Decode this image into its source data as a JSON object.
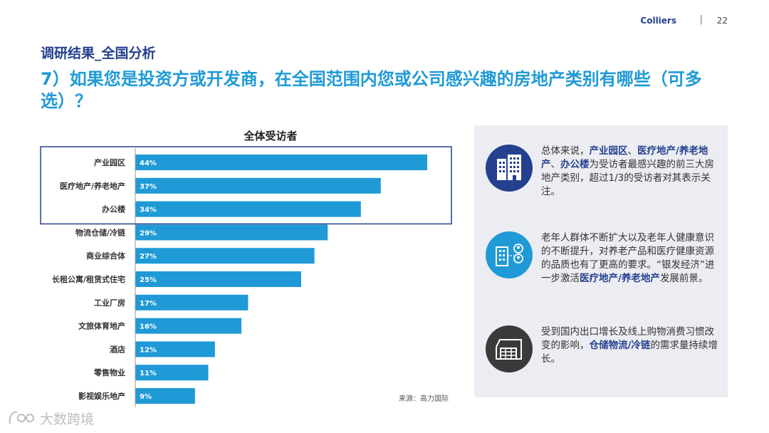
{
  "header": {
    "brand": "Colliers",
    "separator": "|",
    "page_number": "22"
  },
  "subtitle": "调研结果_全国分析",
  "title": "7）如果您是投资方或开发商，在全国范围内您或公司感兴趣的房地产类别有哪些（可多选）？",
  "chart_data": {
    "type": "bar",
    "orientation": "horizontal",
    "title": "全体受访者",
    "categories": [
      "产业园区",
      "医疗地产/养老地产",
      "办公楼",
      "物流仓储/冷链",
      "商业综合体",
      "长租公寓/租赁式住宅",
      "工业厂房",
      "文旅体育地产",
      "酒店",
      "零售物业",
      "影视娱乐地产"
    ],
    "values": [
      44,
      37,
      34,
      29,
      27,
      25,
      17,
      16,
      12,
      11,
      9
    ],
    "value_suffix": "%",
    "highlighted_top": 3,
    "xlim": [
      0,
      50
    ],
    "bar_color": "#1f9ad6",
    "highlight_box_color": "#25408f"
  },
  "source": "来源：高力国际",
  "panel": {
    "items": [
      {
        "icon": "buildings-icon",
        "segments": [
          {
            "t": "总体来说，",
            "h": false
          },
          {
            "t": "产业园区",
            "h": true
          },
          {
            "t": "、",
            "h": false
          },
          {
            "t": "医疗地产/养老地产",
            "h": true
          },
          {
            "t": "、",
            "h": false
          },
          {
            "t": "办公楼",
            "h": true
          },
          {
            "t": "为受访者最感兴趣的前三大房地产类别，超过1/3的受访者对其表示关注。",
            "h": false
          }
        ]
      },
      {
        "icon": "elderly-care-icon",
        "segments": [
          {
            "t": "老年人群体不断扩大以及老年人健康意识的不断提升，对养老产品和医疗健康资源的品质也有了更高的要求。“银发经济”进一步激活",
            "h": false
          },
          {
            "t": "医疗地产/养老地产",
            "h": true
          },
          {
            "t": "发展前景。",
            "h": false
          }
        ]
      },
      {
        "icon": "warehouse-icon",
        "segments": [
          {
            "t": "受到国内出口增长及线上购物消费习惯改变的影响，",
            "h": false
          },
          {
            "t": "仓储物流/冷链",
            "h": true
          },
          {
            "t": "的需求量持续增长。",
            "h": false
          }
        ]
      }
    ]
  },
  "colors": {
    "navy": "#25408f",
    "blue": "#1f9ad6",
    "dark": "#3a3a3a"
  },
  "watermark": "大数跨境"
}
